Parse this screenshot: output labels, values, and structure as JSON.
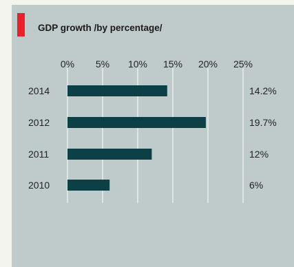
{
  "title": "GDP growth /by percentage/",
  "colors": {
    "panel_bg": "#bfcbcb",
    "page_bg": "#f4f4ee",
    "accent": "#e8222c",
    "bar": "#0d4046",
    "grid": "#ffffff"
  },
  "chart_data": {
    "type": "bar",
    "orientation": "horizontal",
    "title": "GDP growth /by percentage/",
    "categories": [
      "2014",
      "2012",
      "2011",
      "2010"
    ],
    "values": [
      14.2,
      19.7,
      12,
      6
    ],
    "value_labels": [
      "14.2%",
      "19.7%",
      "12%",
      "6%"
    ],
    "xlim": [
      0,
      25
    ],
    "xticks": [
      0,
      5,
      10,
      15,
      20,
      25
    ],
    "xtick_labels": [
      "0%",
      "5%",
      "10%",
      "15%",
      "20%",
      "25%"
    ],
    "xaxis_position": "top",
    "grid": true,
    "legend": "none"
  }
}
